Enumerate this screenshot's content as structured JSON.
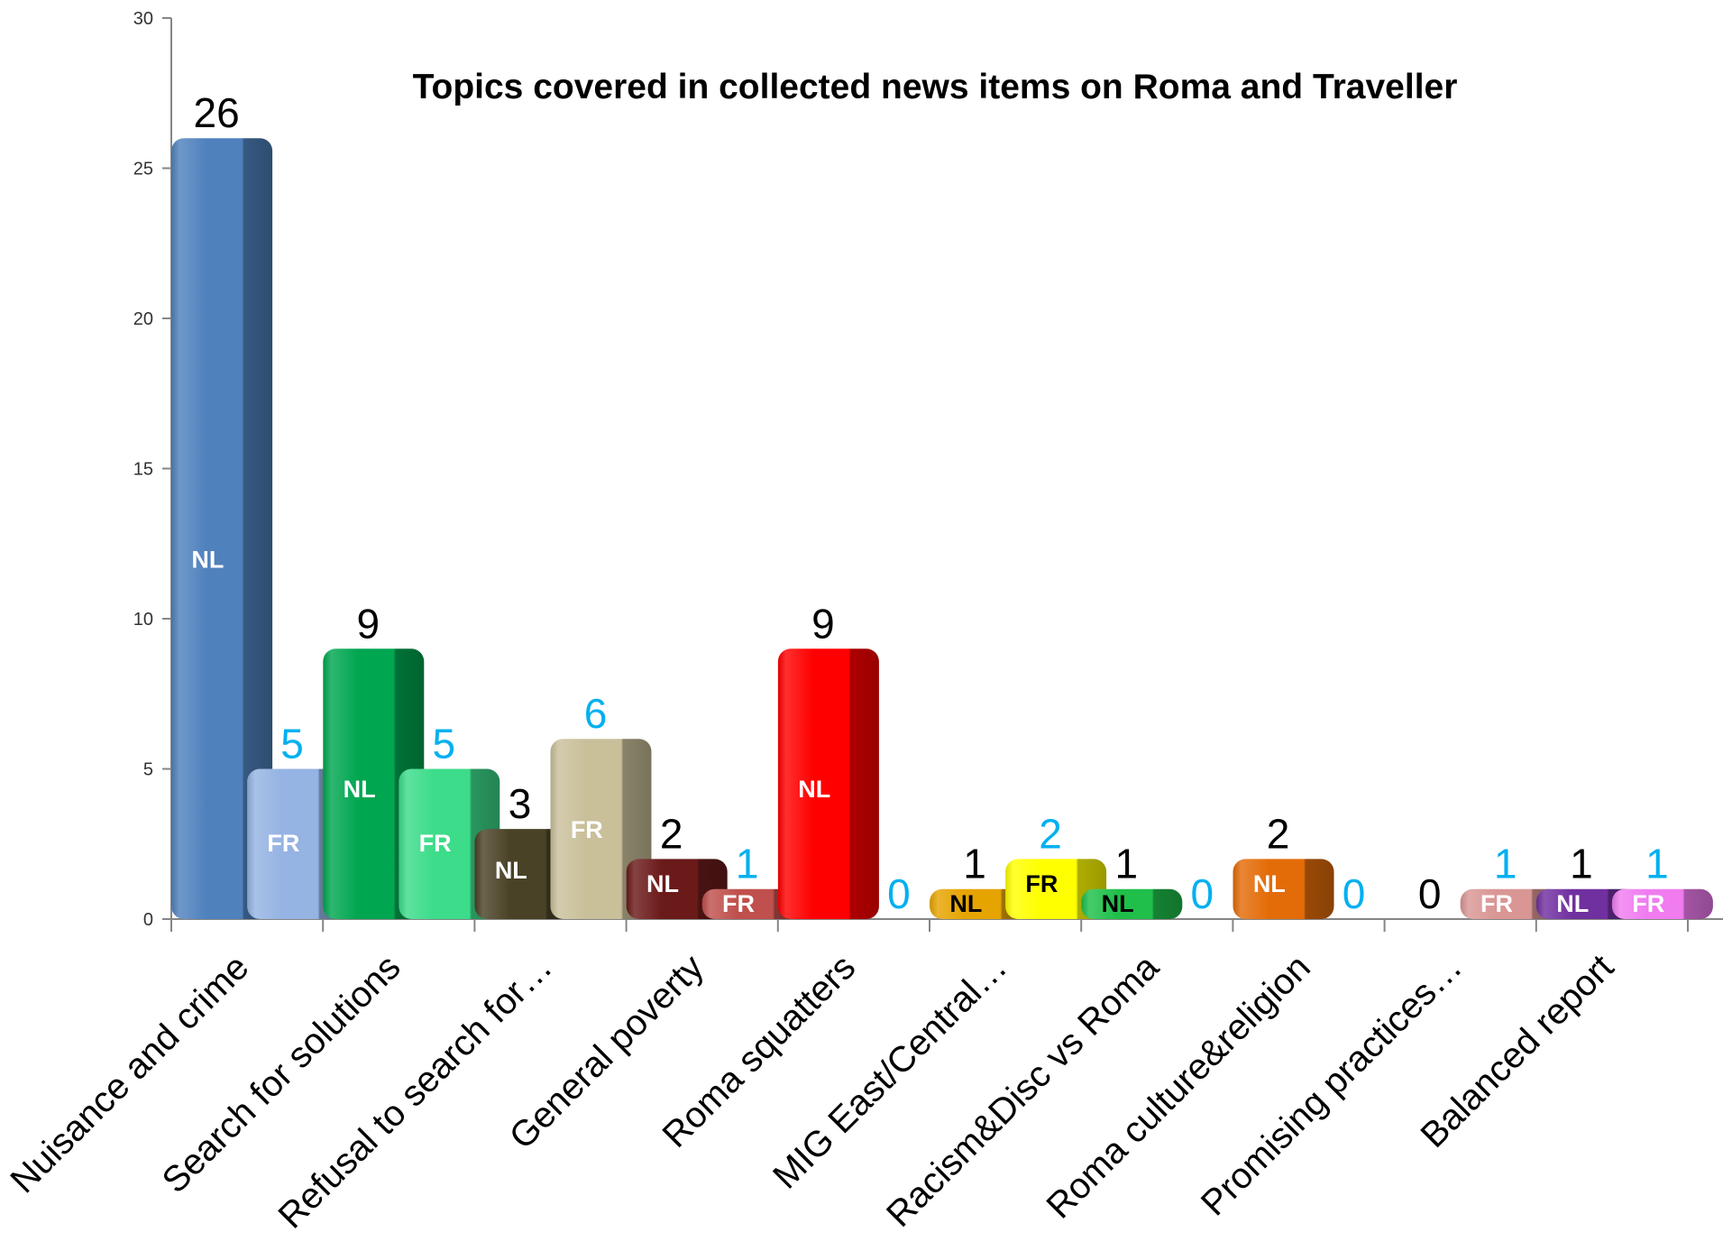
{
  "chart_data": {
    "type": "bar",
    "title": "Topics covered in collected news items on Roma and Traveller",
    "xlabel": "",
    "ylabel": "",
    "ylim": [
      0,
      30
    ],
    "yticks": [
      0,
      5,
      10,
      15,
      20,
      25,
      30
    ],
    "grid": false,
    "legend": "none",
    "categories": [
      "Nuisance and crime",
      "Search for solutions",
      "Refusal to search for…",
      "General poverty",
      "Roma squatters",
      "MIG East/Central…",
      "Racism&Disc vs Roma",
      "Roma culture&religion",
      "Promising practices…",
      "Balanced report"
    ],
    "bars": [
      {
        "category": 0,
        "slot": 0,
        "value": 26,
        "label": "NL",
        "color": "#4f81bd",
        "label_color": "#000000",
        "text_color": "#ffffff"
      },
      {
        "category": 0,
        "slot": 1,
        "value": 5,
        "label": "FR",
        "color": "#95b3e3",
        "label_color": "#00b0f0",
        "text_color": "#ffffff"
      },
      {
        "category": 1,
        "slot": 0,
        "value": 9,
        "label": "NL",
        "color": "#00a650",
        "label_color": "#000000",
        "text_color": "#ffffff"
      },
      {
        "category": 1,
        "slot": 1,
        "value": 5,
        "label": "FR",
        "color": "#3cdc8a",
        "label_color": "#00b0f0",
        "text_color": "#ffffff"
      },
      {
        "category": 2,
        "slot": 0,
        "value": 3,
        "label": "NL",
        "color": "#4a4226",
        "label_color": "#000000",
        "text_color": "#ffffff"
      },
      {
        "category": 2,
        "slot": 1,
        "value": 6,
        "label": "FR",
        "color": "#c9c09a",
        "label_color": "#00b0f0",
        "text_color": "#ffffff"
      },
      {
        "category": 3,
        "slot": 0,
        "value": 2,
        "label": "NL",
        "color": "#6b1a1a",
        "label_color": "#000000",
        "text_color": "#ffffff"
      },
      {
        "category": 3,
        "slot": 1,
        "value": 1,
        "label": "FR",
        "color": "#c0504d",
        "label_color": "#00b0f0",
        "text_color": "#ffffff"
      },
      {
        "category": 4,
        "slot": 0,
        "value": 9,
        "label": "NL",
        "color": "#ff0000",
        "label_color": "#000000",
        "text_color": "#ffffff"
      },
      {
        "category": 4,
        "slot": 1,
        "value": 0,
        "label": "",
        "color": "#ff0000",
        "label_color": "#00b0f0",
        "text_color": "#ffffff"
      },
      {
        "category": 5,
        "slot": 0,
        "value": 1,
        "label": "NL",
        "color": "#e6a400",
        "label_color": "#000000",
        "text_color": "#000000"
      },
      {
        "category": 5,
        "slot": 1,
        "value": 2,
        "label": "FR",
        "color": "#ffff00",
        "label_color": "#00b0f0",
        "text_color": "#000000"
      },
      {
        "category": 6,
        "slot": 0,
        "value": 1,
        "label": "NL",
        "color": "#1fbf4a",
        "label_color": "#000000",
        "text_color": "#000000"
      },
      {
        "category": 6,
        "slot": 1,
        "value": 0,
        "label": "",
        "color": "#1fbf4a",
        "label_color": "#00b0f0",
        "text_color": "#000000"
      },
      {
        "category": 7,
        "slot": 0,
        "value": 2,
        "label": "NL",
        "color": "#e36c09",
        "label_color": "#000000",
        "text_color": "#ffffff"
      },
      {
        "category": 7,
        "slot": 1,
        "value": 0,
        "label": "",
        "color": "#e36c09",
        "label_color": "#00b0f0",
        "text_color": "#ffffff"
      },
      {
        "category": 8,
        "slot": 0,
        "value": 0,
        "label": "",
        "color": "#999999",
        "label_color": "#000000",
        "text_color": "#ffffff"
      },
      {
        "category": 8,
        "slot": 1,
        "value": 1,
        "label": "FR",
        "color": "#d99694",
        "label_color": "#00b0f0",
        "text_color": "#ffffff"
      },
      {
        "category": 9,
        "slot": 0,
        "value": 1,
        "label": "NL",
        "color": "#7030a0",
        "label_color": "#000000",
        "text_color": "#ffffff"
      },
      {
        "category": 9,
        "slot": 1,
        "value": 1,
        "label": "FR",
        "color": "#f07cf0",
        "label_color": "#00b0f0",
        "text_color": "#ffffff"
      }
    ]
  }
}
